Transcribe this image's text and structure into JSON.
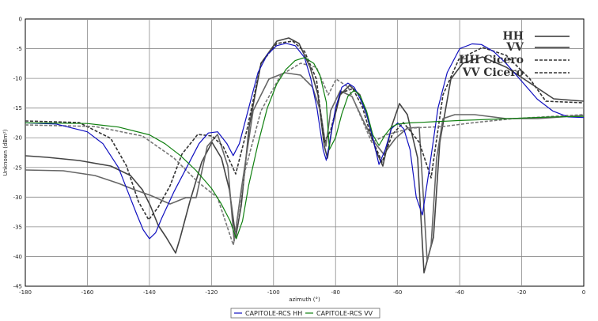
{
  "chart_data": {
    "type": "line",
    "xlabel": "azimuth (°)",
    "ylabel": "Unknown (dBm²)",
    "xlim": [
      -180,
      0
    ],
    "ylim": [
      -45,
      0
    ],
    "x_ticks": [
      -180,
      -160,
      -140,
      -120,
      -100,
      -80,
      -60,
      -40,
      -20,
      0
    ],
    "y_ticks": [
      0,
      -5,
      -10,
      -15,
      -20,
      -25,
      -30,
      -35,
      -40,
      -45
    ],
    "grid": true,
    "legend_top": {
      "placement": "top-right",
      "entries": [
        {
          "label": "HH",
          "style": "solid"
        },
        {
          "label": "VV",
          "style": "solid"
        },
        {
          "label": "HH Cicero",
          "style": "dashed"
        },
        {
          "label": "VV Cicero",
          "style": "dashed"
        }
      ]
    },
    "legend_bottom": {
      "placement": "bottom",
      "entries": [
        {
          "label": "CAPITOLE-RCS HH",
          "color": "#1010c0"
        },
        {
          "label": "CAPITOLE-RCS VV",
          "color": "#108010"
        }
      ]
    },
    "series": [
      {
        "name": "CAPITOLE-RCS HH",
        "color": "#1010c0",
        "x": [
          -180,
          -170,
          -160,
          -155,
          -150,
          -147,
          -144,
          -142,
          -140,
          -138,
          -136,
          -132,
          -128,
          -124,
          -121,
          -118,
          -115,
          -113,
          -111,
          -108,
          -105,
          -102,
          -99,
          -96,
          -93,
          -90,
          -88,
          -86,
          -84,
          -83,
          -82,
          -80,
          -78,
          -76,
          -74,
          -72,
          -70,
          -68,
          -66,
          -64,
          -62,
          -60,
          -58,
          -56,
          -54,
          -52,
          -50,
          -47,
          -44,
          -40,
          -36,
          -33,
          -29,
          -25,
          -20,
          -15,
          -10,
          -5,
          0
        ],
        "y": [
          -17.5,
          -17.7,
          -19,
          -21,
          -25,
          -29,
          -33,
          -35.5,
          -37,
          -36,
          -33.5,
          -29,
          -25,
          -21,
          -19.2,
          -19,
          -21,
          -23,
          -21,
          -15,
          -9,
          -6,
          -4.5,
          -4.1,
          -4.5,
          -6.5,
          -10,
          -15,
          -22,
          -23.8,
          -21,
          -15,
          -11.5,
          -10.8,
          -11.5,
          -13.5,
          -16,
          -20,
          -24.5,
          -22,
          -18.5,
          -17.5,
          -18.5,
          -22,
          -30,
          -33,
          -26,
          -15,
          -9,
          -5,
          -4.2,
          -4.3,
          -5.5,
          -7.5,
          -10.5,
          -13.5,
          -15.5,
          -16.5,
          -16.6
        ]
      },
      {
        "name": "CAPITOLE-RCS VV",
        "color": "#108010",
        "x": [
          -180,
          -160,
          -150,
          -140,
          -135,
          -130,
          -125,
          -120,
          -117,
          -114,
          -112,
          -110,
          -108,
          -105,
          -102,
          -99,
          -96,
          -93,
          -90,
          -87,
          -85,
          -83,
          -82,
          -80,
          -78,
          -76,
          -74,
          -72,
          -70,
          -68,
          -66,
          -64,
          -62,
          -60,
          -56,
          -52,
          -48,
          -44,
          -40,
          -35,
          -30,
          -20,
          -10,
          0
        ],
        "y": [
          -17.5,
          -17.6,
          -18.2,
          -19.5,
          -21,
          -23,
          -25.5,
          -28.5,
          -31,
          -34,
          -37,
          -34,
          -28,
          -21,
          -15,
          -11,
          -8.5,
          -7,
          -6.5,
          -7.5,
          -9.5,
          -14,
          -22,
          -20,
          -16,
          -13,
          -12,
          -13,
          -15.5,
          -19.5,
          -21.3,
          -19.5,
          -18.2,
          -17.7,
          -17.5,
          -17.4,
          -17.3,
          -17.2,
          -17.1,
          -17,
          -16.9,
          -16.7,
          -16.5,
          -16.4
        ]
      }
    ]
  }
}
